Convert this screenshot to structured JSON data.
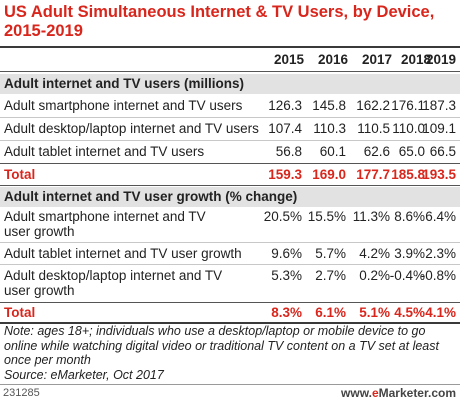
{
  "chart_data": {
    "type": "table",
    "title": "US Adult Simultaneous Internet & TV Users, by Device, 2015-2019",
    "columns": [
      "2015",
      "2016",
      "2017",
      "2018",
      "2019"
    ],
    "sections": [
      {
        "heading": "Adult internet and TV users (millions)",
        "rows": [
          {
            "label": "Adult smartphone internet and TV users",
            "values": [
              "126.3",
              "145.8",
              "162.2",
              "176.1",
              "187.3"
            ]
          },
          {
            "label": "Adult desktop/laptop internet and TV users",
            "values": [
              "107.4",
              "110.3",
              "110.5",
              "110.0",
              "109.1"
            ]
          },
          {
            "label": "Adult tablet internet and TV users",
            "values": [
              "56.8",
              "60.1",
              "62.6",
              "65.0",
              "66.5"
            ]
          },
          {
            "label": "Total",
            "values": [
              "159.3",
              "169.0",
              "177.7",
              "185.8",
              "193.5"
            ],
            "total": true
          }
        ]
      },
      {
        "heading": "Adult internet and TV user growth (% change)",
        "rows": [
          {
            "label": "Adult smartphone internet and TV user growth",
            "values": [
              "20.5%",
              "15.5%",
              "11.3%",
              "8.6%",
              "6.4%"
            ]
          },
          {
            "label": "Adult tablet internet and TV user growth",
            "values": [
              "9.6%",
              "5.7%",
              "4.2%",
              "3.9%",
              "2.3%"
            ]
          },
          {
            "label": "Adult desktop/laptop internet and TV user growth",
            "values": [
              "5.3%",
              "2.7%",
              "0.2%",
              "-0.4%",
              "-0.8%"
            ]
          },
          {
            "label": "Total",
            "values": [
              "8.3%",
              "6.1%",
              "5.1%",
              "4.5%",
              "4.1%"
            ],
            "total": true
          }
        ]
      }
    ],
    "note": "Note: ages 18+; individuals who use a desktop/laptop or mobile device to go online while watching digital video or traditional TV content on a TV set at least once per month",
    "source": "Source: eMarketer, Oct 2017"
  },
  "footer": {
    "chart_id": "231285",
    "brand_prefix": "www.",
    "brand_e": "e",
    "brand_suffix": "Marketer.com"
  },
  "colors": {
    "accent": "#d9261c",
    "section_bg": "#e2e2e2"
  }
}
